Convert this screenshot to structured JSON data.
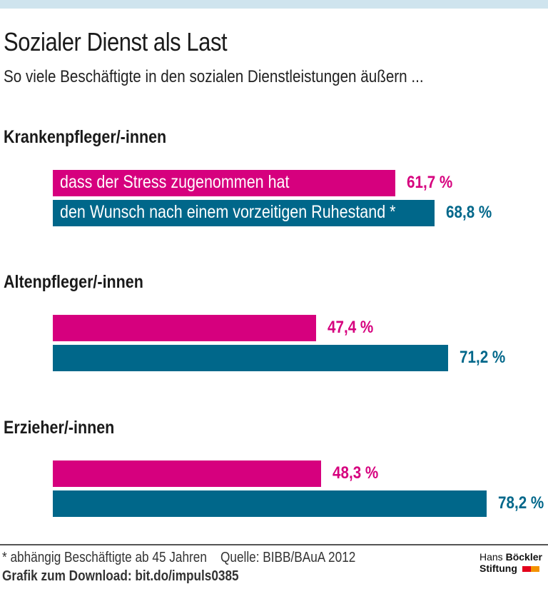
{
  "title": "Sozialer Dienst als Last",
  "subtitle": "So viele Beschäftigte in den sozialen Dienstleistungen äußern ...",
  "colors": {
    "stress": "#d6007e",
    "ruhestand": "#00678a",
    "topbar": "#cfe4ee"
  },
  "chart_data": {
    "type": "bar",
    "orientation": "horizontal",
    "categories": [
      "Krankenpfleger/-innen",
      "Altenpfleger/-innen",
      "Erzieher/-innen"
    ],
    "series": [
      {
        "name": "dass der Stress zugenommen hat",
        "values": [
          61.7,
          47.4,
          48.3
        ],
        "labels": [
          "61,7 %",
          "47,4 %",
          "48,3 %"
        ]
      },
      {
        "name": "den Wunsch nach einem vorzeitigen Ruhestand *",
        "values": [
          68.8,
          71.2,
          78.2
        ],
        "labels": [
          "68,8 %",
          "71,2 %",
          "78,2 %"
        ]
      }
    ],
    "xlim": [
      0,
      100
    ],
    "grid": false
  },
  "footer": {
    "note": "* abhängig Beschäftigte ab 45 Jahren    Quelle: BIBB/BAuA 2012",
    "download": "Grafik zum Download: bit.do/impuls0385",
    "logo_line1_a": "Hans ",
    "logo_line1_b": "Böckler",
    "logo_line2": "Stiftung"
  }
}
